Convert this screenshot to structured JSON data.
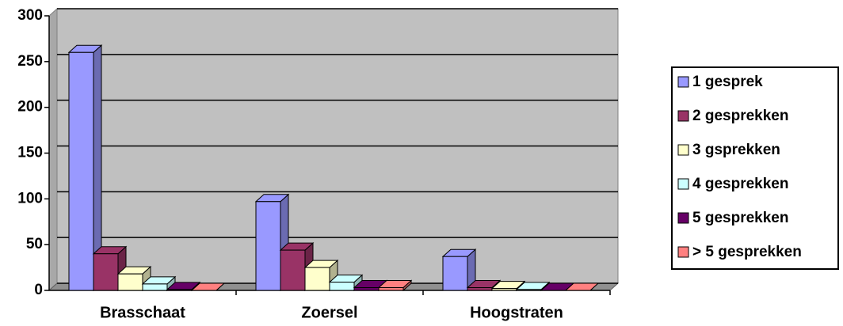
{
  "chart_data": {
    "type": "bar3d",
    "categories": [
      "Brasschaat",
      "Zoersel",
      "Hoogstraten"
    ],
    "series": [
      {
        "name": "1 gesprek",
        "color": "#9999ff",
        "values": [
          260,
          97,
          37
        ]
      },
      {
        "name": "2 gesprekken",
        "color": "#993366",
        "values": [
          40,
          44,
          3
        ]
      },
      {
        "name": "3 gsprekken",
        "color": "#ffffcc",
        "values": [
          18,
          25,
          2
        ]
      },
      {
        "name": "4 gesprekken",
        "color": "#ccffff",
        "values": [
          7,
          9,
          1
        ]
      },
      {
        "name": "5 gesprekken",
        "color": "#660066",
        "values": [
          1,
          3,
          0
        ]
      },
      {
        "name": "> 5 gesprekken",
        "color": "#ff8080",
        "values": [
          0,
          3,
          0
        ]
      }
    ],
    "ylim": [
      0,
      300
    ],
    "yticks": [
      0,
      50,
      100,
      150,
      200,
      250,
      300
    ],
    "grid": true,
    "legend": "right"
  }
}
